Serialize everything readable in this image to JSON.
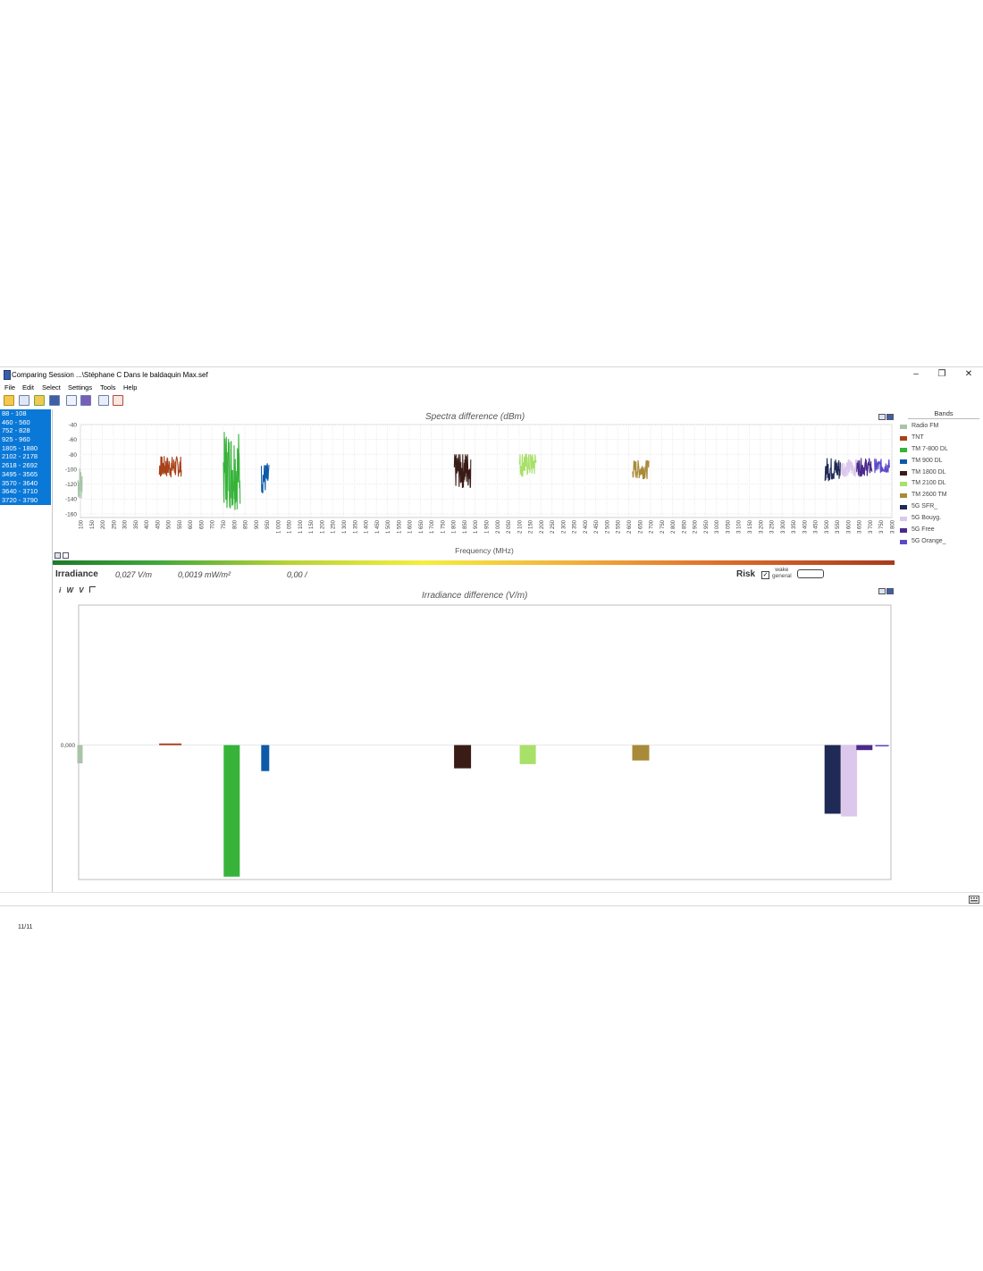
{
  "window": {
    "title": "Comparing Session ...\\Stéphane C Dans le baldaquin Max.sef",
    "minimize_glyph": "–",
    "maximize_glyph": "❐",
    "close_glyph": "✕"
  },
  "menu": [
    "File",
    "Edit",
    "Select",
    "Settings",
    "Tools",
    "Help"
  ],
  "toolbar_icons": [
    "open-folder-icon",
    "edit-document-icon",
    "open-session-icon",
    "save-icon",
    "report-icon",
    "save-as-icon",
    "list-settings-icon",
    "table-icon"
  ],
  "frequency_ranges": [
    "88 - 108",
    "460 - 560",
    "752 - 828",
    "925 - 960",
    "1805 - 1880",
    "2102 - 2178",
    "2618 - 2692",
    "3495 - 3565",
    "3570 - 3640",
    "3640 - 3710",
    "3720 - 3790"
  ],
  "range_counter": "11/11",
  "legend": {
    "title": "Bands",
    "items": [
      {
        "name": "Radio FM",
        "color": "#a9c4a9"
      },
      {
        "name": "TNT",
        "color": "#a8421a"
      },
      {
        "name": "TM 7-800 DL",
        "color": "#37b33a"
      },
      {
        "name": "TM 900 DL",
        "color": "#0f5aa8"
      },
      {
        "name": "TM 1800 DL",
        "color": "#3a1c16"
      },
      {
        "name": "TM 2100 DL",
        "color": "#a8e06a"
      },
      {
        "name": "TM 2600 TM",
        "color": "#a88a38"
      },
      {
        "name": "5G SFR_",
        "color": "#1f2a56"
      },
      {
        "name": "5G Bouyg.",
        "color": "#dcc8ec"
      },
      {
        "name": "5G Free",
        "color": "#4a2a8a"
      },
      {
        "name": "5G Orange_",
        "color": "#5a48c8"
      }
    ]
  },
  "irradiance": {
    "label": "Irradiance",
    "field_strength": "0,027 V/m",
    "power_density": "0,0019 mW/m²",
    "ratio": "0,00 /",
    "risk_label": "Risk",
    "risk_checkbox": "✓",
    "wake_line1": "wake",
    "wake_line2": "general",
    "units": [
      "i",
      "W",
      "V"
    ]
  },
  "chart_data": [
    {
      "type": "line",
      "title": "Spectra difference (dBm)",
      "xlabel": "Frequency (MHz)",
      "ylabel": "",
      "xlim": [
        100,
        3800
      ],
      "ylim": [
        -165,
        -40
      ],
      "yticks": [
        -40,
        -60,
        -80,
        -100,
        -120,
        -140,
        -160
      ],
      "xticks": [
        100,
        150,
        200,
        250,
        300,
        350,
        400,
        450,
        500,
        550,
        600,
        650,
        700,
        750,
        800,
        850,
        900,
        950,
        1000,
        1050,
        1100,
        1150,
        1200,
        1250,
        1300,
        1350,
        1400,
        1450,
        1500,
        1550,
        1600,
        1650,
        1700,
        1750,
        1800,
        1850,
        1900,
        1950,
        2000,
        2050,
        2100,
        2150,
        2200,
        2250,
        2300,
        2350,
        2400,
        2450,
        2500,
        2550,
        2600,
        2650,
        2700,
        2750,
        2800,
        2850,
        2900,
        2950,
        3000,
        3050,
        3100,
        3150,
        3200,
        3250,
        3300,
        3350,
        3400,
        3450,
        3500,
        3550,
        3600,
        3650,
        3700,
        3750,
        3800
      ],
      "xtick_labels": [
        "100",
        "150",
        "200",
        "250",
        "300",
        "350",
        "400",
        "450",
        "500",
        "550",
        "600",
        "650",
        "700",
        "750",
        "800",
        "850",
        "900",
        "950",
        "1 000",
        "1 050",
        "1 100",
        "1 150",
        "1 200",
        "1 250",
        "1 300",
        "1 350",
        "1 400",
        "1 450",
        "1 500",
        "1 550",
        "1 600",
        "1 650",
        "1 700",
        "1 750",
        "1 800",
        "1 850",
        "1 900",
        "1 950",
        "2 000",
        "2 050",
        "2 100",
        "2 150",
        "2 200",
        "2 250",
        "2 300",
        "2 350",
        "2 400",
        "2 450",
        "2 500",
        "2 550",
        "2 600",
        "2 650",
        "2 700",
        "2 750",
        "2 800",
        "2 850",
        "2 900",
        "2 950",
        "3 000",
        "3 050",
        "3 100",
        "3 150",
        "3 200",
        "3 250",
        "3 300",
        "3 350",
        "3 400",
        "3 450",
        "3 500",
        "3 550",
        "3 600",
        "3 650",
        "3 700",
        "3 750",
        "3 800"
      ],
      "grid": true,
      "legend_position": "right",
      "series": [
        {
          "name": "Radio FM",
          "x_range": [
            88,
            108
          ],
          "y_min": -140,
          "y_max": -90,
          "y_mid": -118
        },
        {
          "name": "TNT",
          "x_range": [
            460,
            560
          ],
          "y_min": -110,
          "y_max": -80,
          "y_mid": -97
        },
        {
          "name": "TM 7-800 DL",
          "x_range": [
            752,
            828
          ],
          "y_min": -160,
          "y_max": -50,
          "y_mid": -100
        },
        {
          "name": "TM 900 DL",
          "x_range": [
            925,
            960
          ],
          "y_min": -135,
          "y_max": -92,
          "y_mid": -112
        },
        {
          "name": "TM 1800 DL",
          "x_range": [
            1805,
            1880
          ],
          "y_min": -133,
          "y_max": -80,
          "y_mid": -100
        },
        {
          "name": "TM 2100 DL",
          "x_range": [
            2102,
            2178
          ],
          "y_min": -118,
          "y_max": -80,
          "y_mid": -92
        },
        {
          "name": "TM 2600 TM",
          "x_range": [
            2618,
            2692
          ],
          "y_min": -115,
          "y_max": -88,
          "y_mid": -100
        },
        {
          "name": "5G SFR_",
          "x_range": [
            3495,
            3565
          ],
          "y_min": -118,
          "y_max": -85,
          "y_mid": -100
        },
        {
          "name": "5G Bouyg.",
          "x_range": [
            3570,
            3640
          ],
          "y_min": -112,
          "y_max": -87,
          "y_mid": -98
        },
        {
          "name": "5G Free",
          "x_range": [
            3640,
            3710
          ],
          "y_min": -110,
          "y_max": -85,
          "y_mid": -97
        },
        {
          "name": "5G Orange_",
          "x_range": [
            3720,
            3790
          ],
          "y_min": -105,
          "y_max": -85,
          "y_mid": -96
        }
      ]
    },
    {
      "type": "bar",
      "title": "Irradiance difference (V/m)",
      "xlabel": "",
      "ylabel": "",
      "y_tick_label": "0,000",
      "ylim": [
        -0.048,
        0.05
      ],
      "grid": false,
      "categories": [
        "Radio FM",
        "TNT",
        "TM 7-800 DL",
        "TM 900 DL",
        "TM 1800 DL",
        "TM 2100 DL",
        "TM 2600 TM",
        "5G SFR_",
        "5G Bouyg.",
        "5G Free",
        "5G Orange_"
      ],
      "values": [
        -0.0065,
        0.0006,
        -0.047,
        -0.0093,
        -0.0083,
        -0.0068,
        -0.0055,
        -0.0245,
        -0.0255,
        -0.0018,
        -0.0004
      ]
    }
  ]
}
